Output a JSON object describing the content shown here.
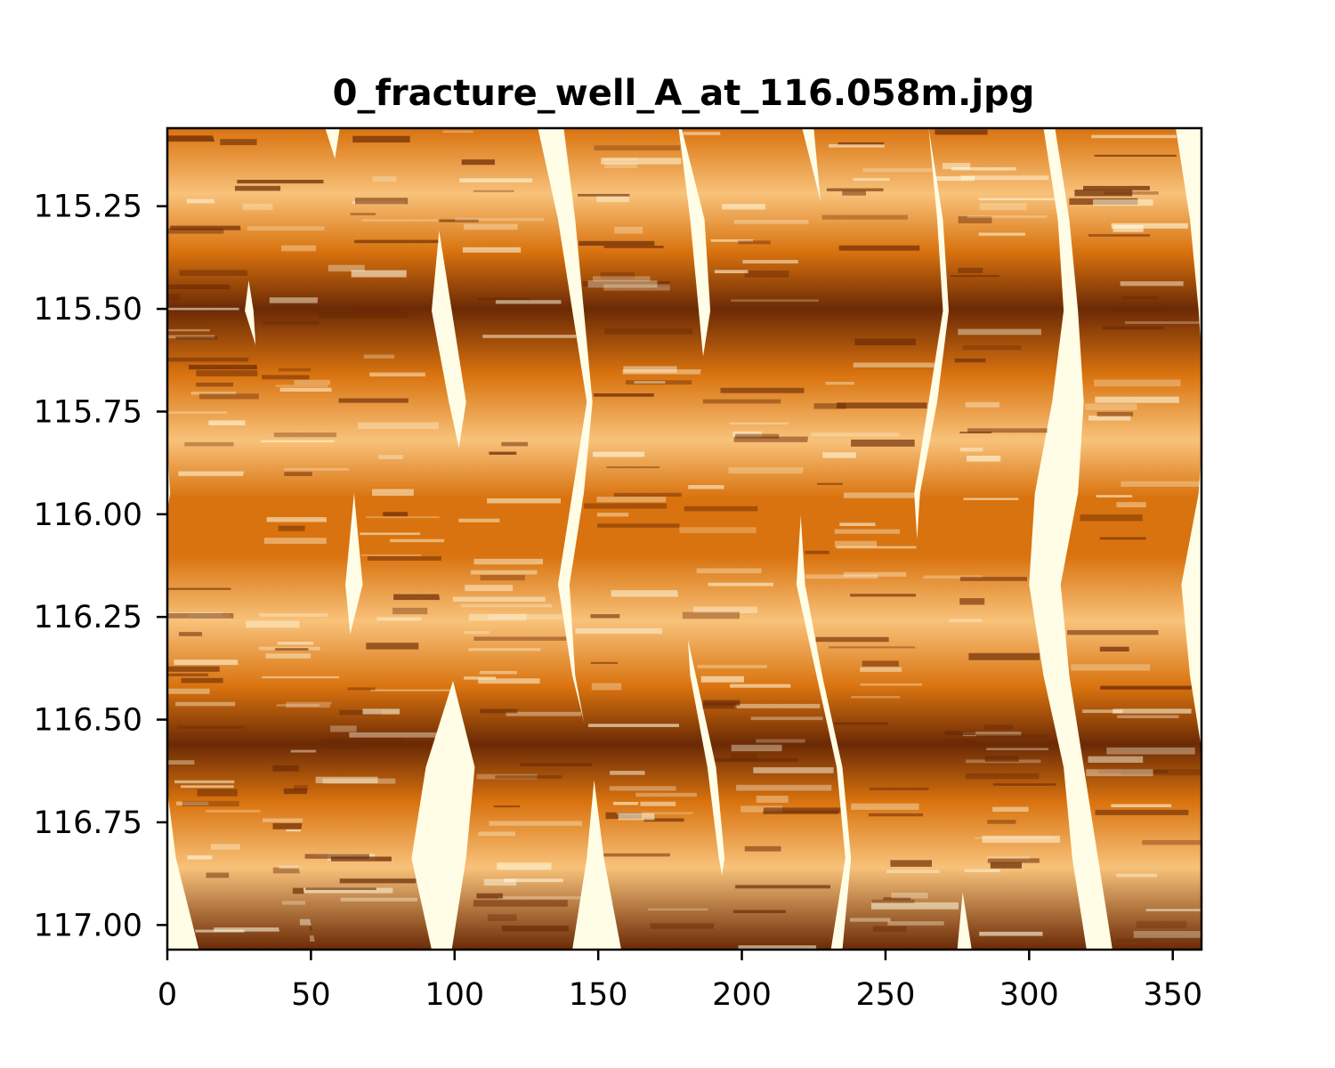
{
  "chart_data": {
    "type": "heatmap",
    "title": "0_fracture_well_A_at_116.058m.jpg",
    "xlabel": "",
    "ylabel": "",
    "xlim": [
      0,
      360
    ],
    "ylim": [
      115.06,
      117.06
    ],
    "y_inverted": true,
    "xticks": [
      0,
      50,
      100,
      150,
      200,
      250,
      300,
      350
    ],
    "xtick_labels": [
      "0",
      "50",
      "100",
      "150",
      "200",
      "250",
      "300",
      "350"
    ],
    "yticks": [
      115.25,
      115.5,
      115.75,
      116.0,
      116.25,
      116.5,
      116.75,
      117.0
    ],
    "ytick_labels": [
      "115.25",
      "115.50",
      "115.75",
      "116.00",
      "116.25",
      "116.50",
      "116.75",
      "117.00"
    ],
    "colormap": "YlOrBr",
    "colors": {
      "gap": "#fffde6",
      "light": "#f8c27a",
      "mid": "#d9730f",
      "dark": "#6b2a05",
      "axis": "#000000"
    },
    "grid": false,
    "legend": "none",
    "pads": [
      {
        "centers": [
          10,
          12,
          8,
          18,
          20,
          15,
          10,
          18,
          22,
          30
        ],
        "width": 38
      },
      {
        "centers": [
          35,
          45,
          50,
          52,
          45,
          42,
          45,
          50,
          55,
          60
        ],
        "width": 40
      },
      {
        "centers": [
          80,
          75,
          72,
          78,
          85,
          88,
          80,
          70,
          65,
          72
        ],
        "width": 40
      },
      {
        "centers": [
          108,
          115,
          120,
          125,
          120,
          115,
          120,
          128,
          125,
          120
        ],
        "width": 42
      },
      {
        "centers": [
          158,
          162,
          165,
          168,
          165,
          160,
          162,
          168,
          172,
          178
        ],
        "width": 40
      },
      {
        "centers": [
          200,
          208,
          210,
          205,
          200,
          198,
          205,
          212,
          215,
          210
        ],
        "width": 42
      },
      {
        "centers": [
          245,
          248,
          250,
          245,
          240,
          242,
          248,
          255,
          258,
          255
        ],
        "width": 40
      },
      {
        "centers": [
          285,
          290,
          292,
          288,
          282,
          280,
          285,
          292,
          295,
          300
        ],
        "width": 40
      },
      {
        "centers": [
          330,
          335,
          338,
          340,
          338,
          332,
          335,
          340,
          345,
          350
        ],
        "width": 42
      }
    ]
  }
}
